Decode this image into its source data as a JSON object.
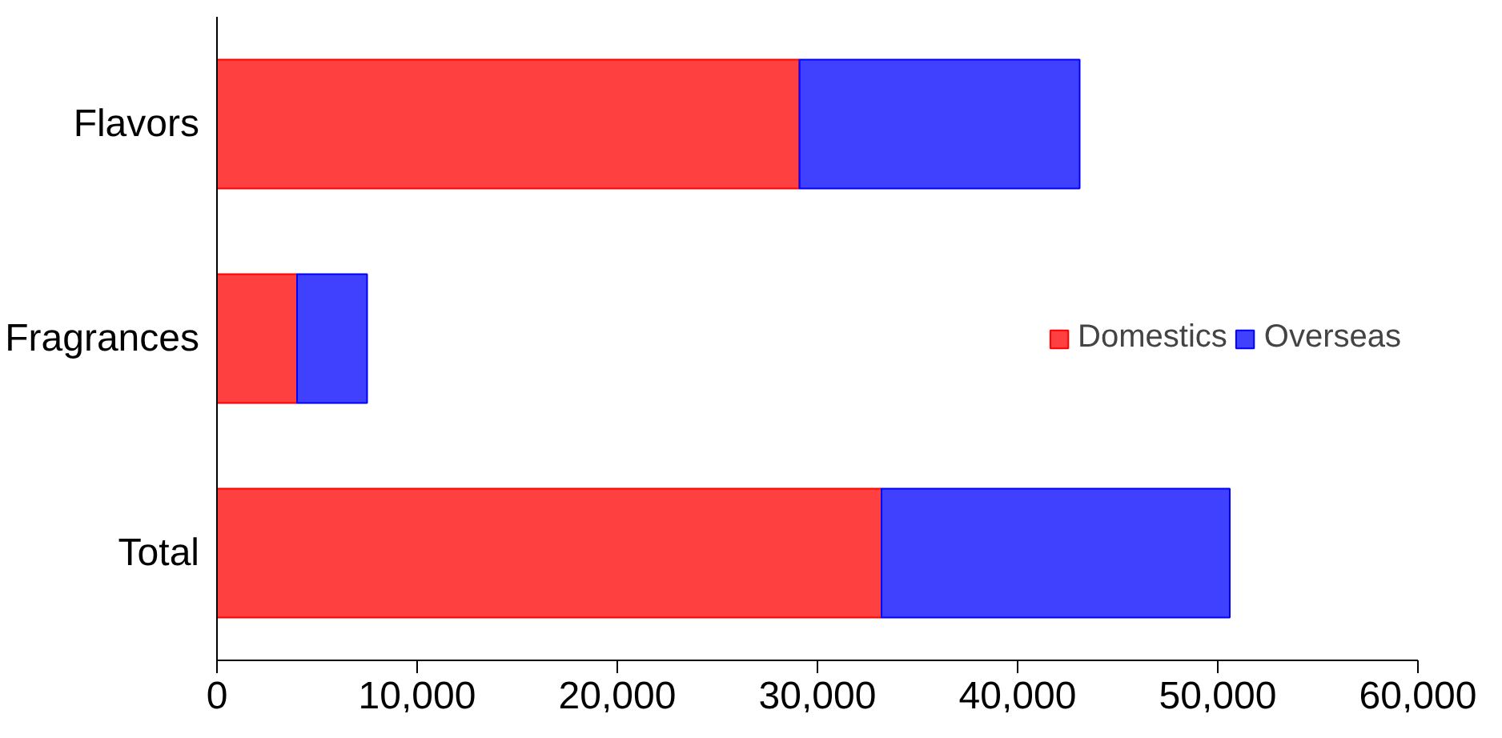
{
  "chart_data": {
    "type": "bar",
    "orientation": "horizontal",
    "stacked": true,
    "categories": [
      "Flavors",
      "Fragrances",
      "Total"
    ],
    "series": [
      {
        "name": "Domestics",
        "color": "#ff0000",
        "values": [
          29100,
          4000,
          33200
        ]
      },
      {
        "name": "Overseas",
        "color": "#0000ff",
        "values": [
          14000,
          3500,
          17400
        ]
      }
    ],
    "xlim": [
      0,
      60000
    ],
    "xticks": [
      0,
      {
        "value": 10000,
        "label": "10,000"
      },
      {
        "value": 20000,
        "label": "20,000"
      },
      {
        "value": 30000,
        "label": "30,000"
      },
      {
        "value": 40000,
        "label": "40,000"
      },
      {
        "value": 50000,
        "label": "50,000"
      },
      {
        "value": 60000,
        "label": "60,000"
      }
    ],
    "grid": false,
    "legend": "right"
  }
}
